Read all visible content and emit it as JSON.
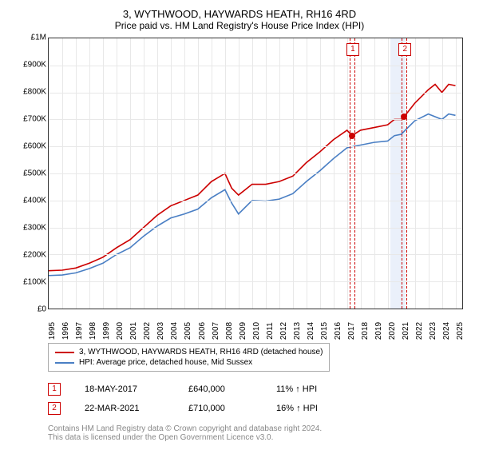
{
  "title": "3, WYTHWOOD, HAYWARDS HEATH, RH16 4RD",
  "subtitle": "Price paid vs. HM Land Registry's House Price Index (HPI)",
  "colors": {
    "series_red": "#cc0000",
    "series_blue": "#4a7fc4",
    "grid": "#e8e8e8",
    "axis": "#333333",
    "band": "#eaf0fa",
    "marker_red": "#cc0000",
    "footer_text": "#888888"
  },
  "yaxis": {
    "min": 0,
    "max": 1000000,
    "ticks": [
      {
        "v": 0,
        "label": "£0"
      },
      {
        "v": 100000,
        "label": "£100K"
      },
      {
        "v": 200000,
        "label": "£200K"
      },
      {
        "v": 300000,
        "label": "£300K"
      },
      {
        "v": 400000,
        "label": "£400K"
      },
      {
        "v": 500000,
        "label": "£500K"
      },
      {
        "v": 600000,
        "label": "£600K"
      },
      {
        "v": 700000,
        "label": "£700K"
      },
      {
        "v": 800000,
        "label": "£800K"
      },
      {
        "v": 900000,
        "label": "£900K"
      },
      {
        "v": 1000000,
        "label": "£1M"
      }
    ]
  },
  "xaxis": {
    "min": 1995,
    "max": 2025.5,
    "ticks": [
      1995,
      1996,
      1997,
      1998,
      1999,
      2000,
      2001,
      2002,
      2003,
      2004,
      2005,
      2006,
      2007,
      2008,
      2009,
      2010,
      2011,
      2012,
      2013,
      2014,
      2015,
      2016,
      2017,
      2018,
      2019,
      2020,
      2021,
      2022,
      2023,
      2024,
      2025
    ]
  },
  "shaded_band": {
    "from": 2020.2,
    "to": 2021.3
  },
  "series_red": [
    [
      1995,
      140000
    ],
    [
      1996,
      142000
    ],
    [
      1997,
      150000
    ],
    [
      1998,
      168000
    ],
    [
      1999,
      190000
    ],
    [
      2000,
      225000
    ],
    [
      2001,
      255000
    ],
    [
      2002,
      300000
    ],
    [
      2003,
      345000
    ],
    [
      2004,
      380000
    ],
    [
      2005,
      400000
    ],
    [
      2006,
      420000
    ],
    [
      2007,
      470000
    ],
    [
      2008,
      500000
    ],
    [
      2008.5,
      445000
    ],
    [
      2009,
      420000
    ],
    [
      2010,
      460000
    ],
    [
      2011,
      460000
    ],
    [
      2012,
      470000
    ],
    [
      2013,
      490000
    ],
    [
      2014,
      540000
    ],
    [
      2015,
      580000
    ],
    [
      2016,
      625000
    ],
    [
      2017,
      660000
    ],
    [
      2017.37,
      640000
    ],
    [
      2018,
      660000
    ],
    [
      2019,
      670000
    ],
    [
      2020,
      680000
    ],
    [
      2020.5,
      700000
    ],
    [
      2021,
      700000
    ],
    [
      2021.22,
      710000
    ],
    [
      2022,
      760000
    ],
    [
      2023,
      810000
    ],
    [
      2023.5,
      830000
    ],
    [
      2024,
      800000
    ],
    [
      2024.5,
      830000
    ],
    [
      2025,
      825000
    ]
  ],
  "series_blue": [
    [
      1995,
      122000
    ],
    [
      1996,
      124000
    ],
    [
      1997,
      132000
    ],
    [
      1998,
      148000
    ],
    [
      1999,
      168000
    ],
    [
      2000,
      200000
    ],
    [
      2001,
      225000
    ],
    [
      2002,
      268000
    ],
    [
      2003,
      305000
    ],
    [
      2004,
      335000
    ],
    [
      2005,
      350000
    ],
    [
      2006,
      368000
    ],
    [
      2007,
      410000
    ],
    [
      2008,
      440000
    ],
    [
      2008.5,
      390000
    ],
    [
      2009,
      350000
    ],
    [
      2010,
      400000
    ],
    [
      2011,
      398000
    ],
    [
      2012,
      405000
    ],
    [
      2013,
      425000
    ],
    [
      2014,
      470000
    ],
    [
      2015,
      510000
    ],
    [
      2016,
      555000
    ],
    [
      2017,
      595000
    ],
    [
      2018,
      605000
    ],
    [
      2019,
      615000
    ],
    [
      2020,
      620000
    ],
    [
      2020.5,
      640000
    ],
    [
      2021,
      645000
    ],
    [
      2022,
      695000
    ],
    [
      2023,
      720000
    ],
    [
      2024,
      700000
    ],
    [
      2024.5,
      720000
    ],
    [
      2025,
      715000
    ]
  ],
  "sale_markers": [
    {
      "n": "1",
      "year": 2017.37,
      "price": 640000
    },
    {
      "n": "2",
      "year": 2021.22,
      "price": 710000
    }
  ],
  "legend": {
    "red": "3, WYTHWOOD, HAYWARDS HEATH, RH16 4RD (detached house)",
    "blue": "HPI: Average price, detached house, Mid Sussex"
  },
  "sales": [
    {
      "n": "1",
      "date": "18-MAY-2017",
      "price": "£640,000",
      "hpi": "11% ↑ HPI"
    },
    {
      "n": "2",
      "date": "22-MAR-2021",
      "price": "£710,000",
      "hpi": "16% ↑ HPI"
    }
  ],
  "footer1": "Contains HM Land Registry data © Crown copyright and database right 2024.",
  "footer2": "This data is licensed under the Open Government Licence v3.0."
}
